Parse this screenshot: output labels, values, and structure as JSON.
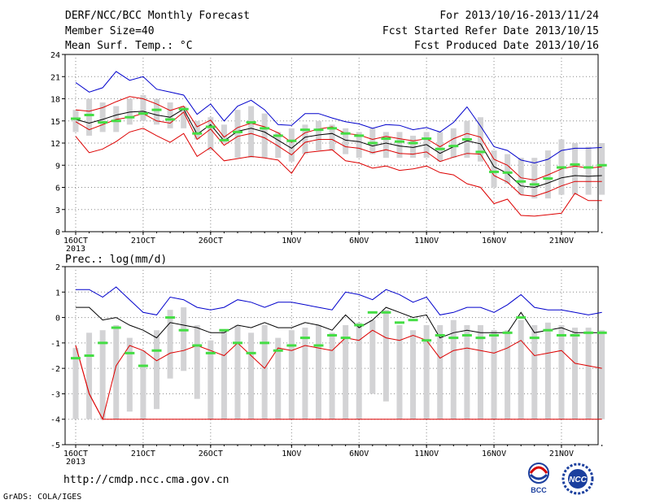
{
  "header": {
    "title": "DERF/NCC/BCC Monthly Forecast",
    "member_size": "Member Size=40",
    "variable": "Mean Surf. Temp.: °C",
    "period": "For 2013/10/16-2013/11/24",
    "fcst_started": "Fcst Started Refer Date 2013/10/15",
    "fcst_produced": "Fcst Produced Date 2013/10/16"
  },
  "footer": {
    "url": "http://cmdp.ncc.cma.gov.cn",
    "credit": "GrADS: COLA/IGES",
    "logo_bcc": "BCC",
    "logo_ncc": "NCC"
  },
  "colors": {
    "box": "#d3d3d5",
    "mean": "#000000",
    "upper": "#0000cc",
    "lower": "#dd0000",
    "median": "#44dd44"
  },
  "chart_data": [
    {
      "type": "box-line",
      "ylabel": "Mean Surf. Temp.: °C",
      "ylim": [
        0,
        24
      ],
      "yticks": [
        0,
        3,
        6,
        9,
        12,
        15,
        18,
        21,
        24
      ],
      "xlim": [
        16,
        55.5
      ],
      "x_tick_labels": [
        {
          "x": 16,
          "label": "16OCT",
          "sub": "2013"
        },
        {
          "x": 21,
          "label": "21OCT"
        },
        {
          "x": 26,
          "label": "26OCT"
        },
        {
          "x": 32,
          "label": "1NOV"
        },
        {
          "x": 37,
          "label": "6NOV"
        },
        {
          "x": 42,
          "label": "11NOV"
        },
        {
          "x": 47,
          "label": "16NOV"
        },
        {
          "x": 52,
          "label": "21NOV"
        }
      ],
      "x": [
        16,
        17,
        18,
        19,
        20,
        21,
        22,
        23,
        24,
        25,
        26,
        27,
        28,
        29,
        30,
        31,
        32,
        33,
        34,
        35,
        36,
        37,
        38,
        39,
        40,
        41,
        42,
        43,
        44,
        45,
        46,
        47,
        48,
        49,
        50,
        51,
        52,
        53,
        54,
        55
      ],
      "box_low": [
        13.5,
        13,
        13.5,
        13.5,
        14.5,
        15,
        14.5,
        14,
        14,
        12.5,
        11,
        12,
        10,
        10,
        10,
        10,
        9.5,
        10.5,
        11,
        11,
        10.5,
        10,
        10.5,
        10,
        10,
        10,
        10,
        9.5,
        10,
        10,
        9.5,
        6,
        6.5,
        5,
        4.5,
        4.5,
        5,
        5,
        5,
        5
      ],
      "box_high": [
        16.5,
        18,
        17.5,
        17,
        18,
        18.5,
        18,
        17.5,
        17,
        15,
        15.5,
        14.5,
        16.5,
        17,
        16,
        13.5,
        14,
        14.5,
        15,
        14.5,
        14,
        13.5,
        14,
        13.5,
        13.5,
        13,
        13.5,
        13.5,
        14,
        15,
        15.5,
        11,
        10.5,
        10,
        10,
        11,
        12.5,
        12,
        11.5,
        12
      ],
      "series": [
        {
          "name": "mean",
          "values": [
            15.2,
            14.7,
            15.2,
            15.8,
            16.2,
            16.3,
            15.8,
            15.5,
            16.6,
            13.2,
            14.5,
            12.3,
            13.6,
            14.0,
            13.5,
            12.4,
            11.3,
            12.8,
            13.1,
            13.3,
            12.4,
            12.2,
            11.6,
            12.0,
            11.6,
            11.4,
            11.8,
            10.6,
            11.5,
            12.3,
            11.9,
            8.8,
            7.9,
            6.2,
            6.0,
            6.6,
            7.3,
            7.6,
            7.5,
            7.6
          ]
        },
        {
          "name": "upper",
          "values": [
            20.2,
            18.9,
            19.5,
            21.7,
            20.5,
            21.0,
            19.3,
            18.9,
            18.5,
            15.9,
            17.3,
            15.0,
            17.0,
            17.8,
            16.5,
            14.5,
            14.4,
            16.0,
            16.0,
            15.4,
            14.9,
            14.6,
            14.0,
            14.5,
            14.4,
            13.8,
            14.1,
            13.5,
            14.8,
            16.9,
            14.3,
            11.5,
            11.0,
            9.7,
            9.3,
            9.8,
            11.0,
            11.3,
            11.3,
            11.4
          ]
        },
        {
          "name": "lower",
          "values": [
            12.9,
            10.7,
            11.2,
            12.2,
            13.5,
            14.0,
            13.0,
            12.1,
            13.3,
            10.2,
            11.4,
            9.6,
            9.9,
            10.2,
            10.0,
            9.7,
            7.9,
            10.7,
            10.9,
            11.1,
            9.6,
            9.3,
            8.6,
            8.9,
            8.3,
            8.5,
            8.9,
            8.0,
            7.7,
            6.5,
            6.0,
            3.8,
            4.4,
            2.2,
            2.1,
            2.3,
            2.5,
            5.2,
            4.2,
            4.2
          ]
        },
        {
          "name": "mean_plus",
          "values": [
            16.5,
            16.3,
            16.8,
            17.6,
            18.3,
            18.0,
            17.3,
            16.4,
            17.0,
            14.2,
            15.1,
            12.8,
            14.1,
            14.7,
            14.2,
            13.4,
            12.1,
            13.4,
            13.9,
            14.2,
            13.3,
            13.1,
            12.5,
            12.9,
            12.6,
            12.3,
            12.6,
            11.5,
            12.6,
            13.3,
            12.8,
            9.8,
            9.0,
            7.3,
            7.0,
            7.7,
            8.5,
            8.9,
            8.6,
            8.8
          ]
        },
        {
          "name": "mean_minus",
          "values": [
            14.9,
            13.8,
            14.5,
            15.2,
            15.5,
            16.0,
            15.0,
            14.7,
            16.2,
            12.5,
            13.9,
            11.7,
            12.9,
            13.3,
            12.7,
            11.6,
            10.4,
            12.1,
            12.5,
            12.5,
            11.5,
            11.3,
            10.7,
            11.1,
            10.6,
            10.5,
            10.8,
            9.5,
            10.1,
            10.6,
            10.5,
            7.6,
            6.7,
            5.0,
            4.8,
            5.4,
            6.2,
            6.8,
            6.8,
            6.8
          ]
        },
        {
          "name": "median",
          "values": [
            15.3,
            15.8,
            14.8,
            15.0,
            15.5,
            16.0,
            16.5,
            15.2,
            16.6,
            13.3,
            14.2,
            12.4,
            13.5,
            14.8,
            14.0,
            13.0,
            12.3,
            13.8,
            13.8,
            14.0,
            13.3,
            13.0,
            12.0,
            12.6,
            12.2,
            12.0,
            12.6,
            11.2,
            11.6,
            12.5,
            10.8,
            8.1,
            8.0,
            6.8,
            6.4,
            7.2,
            8.7,
            9.1,
            8.7,
            9.0
          ]
        }
      ]
    },
    {
      "type": "box-line",
      "ylabel": "Prec.: log(mm/d)",
      "ylim": [
        -5,
        2
      ],
      "yticks": [
        -5,
        -4,
        -3,
        -2,
        -1,
        0,
        1,
        2
      ],
      "xlim": [
        16,
        55.5
      ],
      "x_tick_labels": [
        {
          "x": 16,
          "label": "16OCT",
          "sub": "2013"
        },
        {
          "x": 21,
          "label": "21OCT"
        },
        {
          "x": 26,
          "label": "26OCT"
        },
        {
          "x": 32,
          "label": "1NOV"
        },
        {
          "x": 37,
          "label": "6NOV"
        },
        {
          "x": 42,
          "label": "11NOV"
        },
        {
          "x": 47,
          "label": "16NOV"
        },
        {
          "x": 52,
          "label": "21NOV"
        }
      ],
      "x": [
        16,
        17,
        18,
        19,
        20,
        21,
        22,
        23,
        24,
        25,
        26,
        27,
        28,
        29,
        30,
        31,
        32,
        33,
        34,
        35,
        36,
        37,
        38,
        39,
        40,
        41,
        42,
        43,
        44,
        45,
        46,
        47,
        48,
        49,
        50,
        51,
        52,
        53,
        54,
        55
      ],
      "box_low": [
        -4,
        -4,
        -4,
        -4,
        -3.7,
        -4,
        -3.6,
        -2.4,
        -2.1,
        -3.2,
        -4,
        -4,
        -4,
        -4,
        -4,
        -4,
        -4,
        -4,
        -4,
        -4,
        -4,
        -4,
        -3,
        -3.3,
        -4,
        -4,
        -4,
        -4,
        -4,
        -4,
        -4,
        -4,
        -4,
        -4,
        -4,
        -4,
        -4,
        -4,
        -4,
        -4
      ],
      "box_high": [
        -1.2,
        -0.6,
        -0.5,
        -0.3,
        -0.8,
        -1.3,
        -0.5,
        0.3,
        0.4,
        -0.3,
        -0.9,
        -0.5,
        -0.3,
        -0.6,
        -0.3,
        -0.8,
        -0.5,
        -0.4,
        -0.3,
        -0.6,
        -0.3,
        -0.2,
        -0.1,
        0.3,
        -0.3,
        -0.5,
        -0.3,
        -0.3,
        -0.1,
        -0.3,
        -0.3,
        -0.5,
        -0.5,
        -0.1,
        -0.3,
        -0.2,
        -0.3,
        -0.4,
        -0.4,
        -0.5
      ],
      "series": [
        {
          "name": "mean",
          "values": [
            0.4,
            0.4,
            -0.1,
            0.0,
            -0.3,
            -0.5,
            -0.8,
            -0.2,
            -0.3,
            -0.4,
            -0.6,
            -0.6,
            -0.3,
            -0.4,
            -0.2,
            -0.4,
            -0.4,
            -0.2,
            -0.3,
            -0.5,
            0.1,
            -0.4,
            -0.1,
            0.4,
            0.2,
            0.0,
            0.1,
            -0.8,
            -0.6,
            -0.5,
            -0.6,
            -0.6,
            -0.6,
            0.2,
            -0.6,
            -0.5,
            -0.4,
            -0.6,
            -0.6,
            -0.6
          ]
        },
        {
          "name": "upper",
          "values": [
            1.1,
            1.1,
            0.8,
            1.2,
            0.7,
            0.2,
            0.1,
            0.8,
            0.7,
            0.4,
            0.3,
            0.4,
            0.7,
            0.6,
            0.4,
            0.6,
            0.6,
            0.5,
            0.4,
            0.3,
            1.0,
            0.9,
            0.7,
            1.1,
            0.9,
            0.6,
            0.8,
            0.1,
            0.2,
            0.4,
            0.4,
            0.2,
            0.5,
            0.9,
            0.4,
            0.3,
            0.3,
            0.2,
            0.1,
            0.2
          ]
        },
        {
          "name": "lower",
          "values": [
            -1.1,
            -3.0,
            -4.0,
            -4.0,
            -4.0,
            -4.0,
            -4.0,
            -4.0,
            -4.0,
            -4.0,
            -4.0,
            -4.0,
            -4.0,
            -4.0,
            -4.0,
            -4.0,
            -4.0,
            -4.0,
            -4.0,
            -4.0,
            -4.0,
            -4.0,
            -4.0,
            -4.0,
            -4.0,
            -4.0,
            -4.0,
            -4.0,
            -4.0,
            -4.0,
            -4.0,
            -4.0,
            -4.0,
            -4.0,
            -4.0,
            -4.0,
            -4.0,
            -4.0,
            -4.0,
            -4.0
          ]
        },
        {
          "name": "red_line",
          "values": [
            -1.1,
            -3.0,
            -4.0,
            -1.9,
            -1.1,
            -1.3,
            -1.7,
            -1.4,
            -1.3,
            -1.1,
            -1.3,
            -1.5,
            -1.0,
            -1.5,
            -2.0,
            -1.2,
            -1.3,
            -1.1,
            -1.2,
            -1.3,
            -0.8,
            -0.9,
            -0.5,
            -0.8,
            -0.9,
            -0.7,
            -0.9,
            -1.6,
            -1.3,
            -1.2,
            -1.3,
            -1.4,
            -1.2,
            -0.9,
            -1.5,
            -1.4,
            -1.3,
            -1.8,
            -1.9,
            -2.0
          ]
        },
        {
          "name": "median",
          "values": [
            -1.6,
            -1.5,
            -1.0,
            -0.4,
            -1.4,
            -1.9,
            -1.3,
            0.0,
            -0.5,
            -1.1,
            -1.4,
            -0.5,
            -1.0,
            -1.4,
            -1.0,
            -1.3,
            -1.1,
            -0.8,
            -1.1,
            -0.7,
            -0.8,
            -0.3,
            0.2,
            0.2,
            -0.2,
            -0.1,
            -0.9,
            -0.7,
            -0.8,
            -0.7,
            -0.8,
            -0.7,
            -0.6,
            0.0,
            -0.8,
            -0.5,
            -0.7,
            -0.7,
            -0.6,
            -0.6
          ]
        }
      ]
    }
  ]
}
